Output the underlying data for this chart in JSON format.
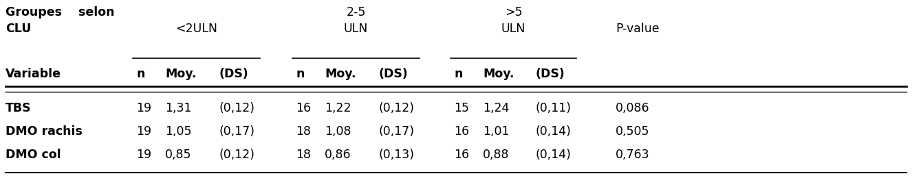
{
  "rows": [
    {
      "variable": "TBS",
      "n1": "19",
      "moy1": "1,31",
      "ds1": "(0,12)",
      "n2": "16",
      "moy2": "1,22",
      "ds2": "(0,12)",
      "n3": "15",
      "moy3": "1,24",
      "ds3": "(0,11)",
      "pvalue": "0,086"
    },
    {
      "variable": "DMO rachis",
      "n1": "19",
      "moy1": "1,05",
      "ds1": "(0,17)",
      "n2": "18",
      "moy2": "1,08",
      "ds2": "(0,17)",
      "n3": "16",
      "moy3": "1,01",
      "ds3": "(0,14)",
      "pvalue": "0,505"
    },
    {
      "variable": "DMO col",
      "n1": "19",
      "moy1": "0,85",
      "ds1": "(0,12)",
      "n2": "18",
      "moy2": "0,86",
      "ds2": "(0,13)",
      "n3": "16",
      "moy3": "0,88",
      "ds3": "(0,14)",
      "pvalue": "0,763"
    }
  ],
  "header_left_line1": "Groupes    selon",
  "header_left_line2": "CLU",
  "header_left_line3": "Variable",
  "group1_label": "<2ULN",
  "group2_line1": "2-5",
  "group2_line2": "ULN",
  "group3_line1": ">5",
  "group3_line2": "ULN",
  "pvalue_label": "P-value",
  "sub_cols": [
    "n",
    "Moy.",
    "(DS)"
  ],
  "bg_color": "#ffffff",
  "text_color": "#000000",
  "line_color": "#000000",
  "font_size": 12.5
}
